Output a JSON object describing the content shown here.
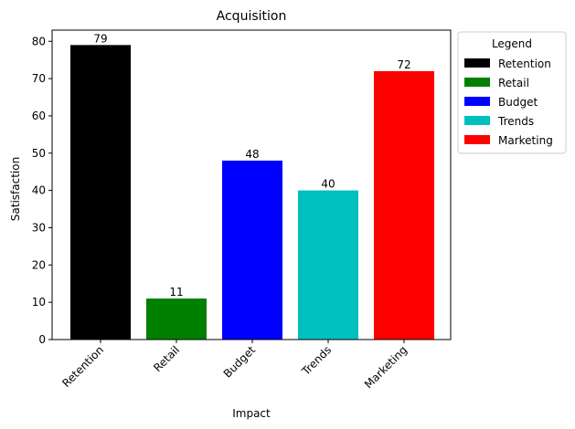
{
  "chart_data": {
    "type": "bar",
    "title": "Acquisition",
    "xlabel": "Impact",
    "ylabel": "Satisfaction",
    "categories": [
      "Retention",
      "Retail",
      "Budget",
      "Trends",
      "Marketing"
    ],
    "values": [
      79,
      11,
      48,
      40,
      72
    ],
    "colors": [
      "#000000",
      "#008000",
      "#0000ff",
      "#00bfbf",
      "#ff0000"
    ],
    "ylim": [
      0,
      83
    ],
    "yticks": [
      0,
      10,
      20,
      30,
      40,
      50,
      60,
      70,
      80
    ],
    "grid": false,
    "legend": {
      "title": "Legend",
      "placement": "outside-right-top",
      "entries": [
        "Retention",
        "Retail",
        "Budget",
        "Trends",
        "Marketing"
      ]
    }
  }
}
